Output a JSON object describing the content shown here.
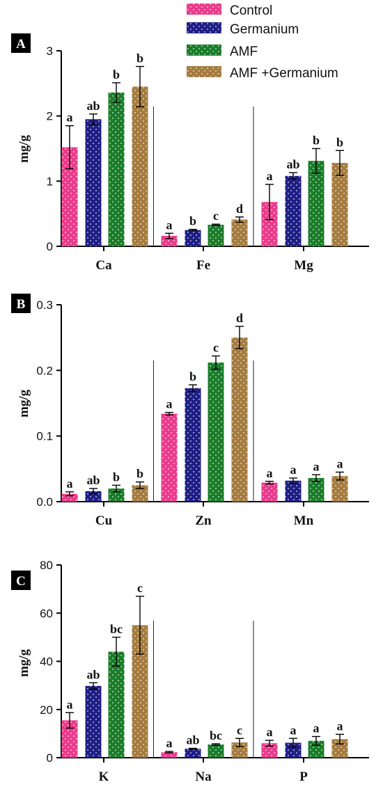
{
  "colors": {
    "Control": "#ea3b8c",
    "Germanium": "#1f1f86",
    "AMF": "#1b7d2a",
    "AMF +Germanium": "#a57b3f"
  },
  "legend": [
    "Control",
    "Germanium",
    "AMF",
    "AMF +Germanium"
  ],
  "chart_data": [
    {
      "type": "bar",
      "panel": "A",
      "ylabel": "mg/g",
      "ylim": [
        0,
        3
      ],
      "yticks": [
        "0",
        "1",
        "2",
        "3"
      ],
      "categories": [
        "Ca",
        "Fe",
        "Mg"
      ],
      "series": [
        {
          "name": "Control",
          "values": [
            1.52,
            0.16,
            0.68
          ],
          "errors": [
            0.33,
            0.04,
            0.27
          ],
          "sig": [
            "a",
            "a",
            "a"
          ]
        },
        {
          "name": "Germanium",
          "values": [
            1.95,
            0.25,
            1.08
          ],
          "errors": [
            0.08,
            0.01,
            0.05
          ],
          "sig": [
            "ab",
            "b",
            "ab"
          ]
        },
        {
          "name": "AMF",
          "values": [
            2.36,
            0.33,
            1.31
          ],
          "errors": [
            0.15,
            0.01,
            0.19
          ],
          "sig": [
            "b",
            "c",
            "b"
          ]
        },
        {
          "name": "AMF +Germanium",
          "values": [
            2.45,
            0.41,
            1.28
          ],
          "errors": [
            0.31,
            0.04,
            0.19
          ],
          "sig": [
            "b",
            "d",
            "b"
          ]
        }
      ]
    },
    {
      "type": "bar",
      "panel": "B",
      "ylabel": "mg/g",
      "ylim": [
        0,
        0.3
      ],
      "yticks": [
        "0.0",
        "0.1",
        "0.2",
        "0.3"
      ],
      "categories": [
        "Cu",
        "Zn",
        "Mn"
      ],
      "series": [
        {
          "name": "Control",
          "values": [
            0.012,
            0.134,
            0.029
          ],
          "errors": [
            0.003,
            0.002,
            0.002
          ],
          "sig": [
            "a",
            "a",
            "a"
          ]
        },
        {
          "name": "Germanium",
          "values": [
            0.016,
            0.173,
            0.032
          ],
          "errors": [
            0.004,
            0.005,
            0.004
          ],
          "sig": [
            "ab",
            "b",
            "a"
          ]
        },
        {
          "name": "AMF",
          "values": [
            0.02,
            0.212,
            0.036
          ],
          "errors": [
            0.005,
            0.01,
            0.005
          ],
          "sig": [
            "b",
            "c",
            "a"
          ]
        },
        {
          "name": "AMF +Germanium",
          "values": [
            0.025,
            0.25,
            0.039
          ],
          "errors": [
            0.005,
            0.017,
            0.006
          ],
          "sig": [
            "b",
            "d",
            "a"
          ]
        }
      ]
    },
    {
      "type": "bar",
      "panel": "C",
      "ylabel": "mg/g",
      "ylim": [
        0,
        80
      ],
      "yticks": [
        "0",
        "20",
        "40",
        "60",
        "80"
      ],
      "categories": [
        "K",
        "Na",
        "P"
      ],
      "series": [
        {
          "name": "Control",
          "values": [
            15.5,
            2.3,
            6.0
          ],
          "errors": [
            3.2,
            0.3,
            1.2
          ],
          "sig": [
            "a",
            "a",
            "a"
          ]
        },
        {
          "name": "Germanium",
          "values": [
            29.8,
            3.7,
            6.2
          ],
          "errors": [
            1.3,
            0.2,
            1.8
          ],
          "sig": [
            "ab",
            "ab",
            "a"
          ]
        },
        {
          "name": "AMF",
          "values": [
            44.0,
            5.5,
            7.0
          ],
          "errors": [
            6.0,
            0.3,
            1.8
          ],
          "sig": [
            "bc",
            "bc",
            "a"
          ]
        },
        {
          "name": "AMF +Germanium",
          "values": [
            55.0,
            6.3,
            7.7
          ],
          "errors": [
            12.0,
            1.7,
            2.0
          ],
          "sig": [
            "c",
            "c",
            "a"
          ]
        }
      ]
    }
  ]
}
